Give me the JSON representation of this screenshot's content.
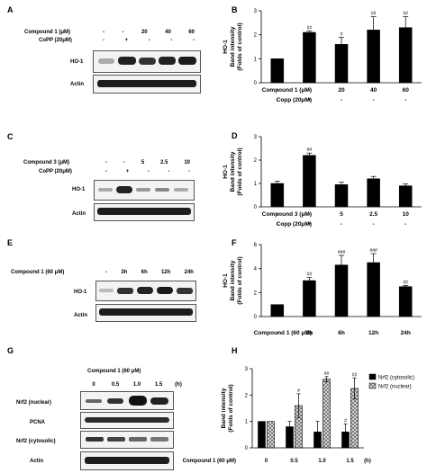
{
  "panels": {
    "A": {
      "label": "A",
      "treat_rows": [
        {
          "label": "Compound 1  (μM)",
          "values": [
            "-",
            "-",
            "20",
            "40",
            "60"
          ]
        },
        {
          "label": "CoPP  (20μM)",
          "values": [
            "-",
            "+",
            "-",
            "-",
            "-"
          ]
        }
      ],
      "bands": [
        "HO-1",
        "Actin"
      ]
    },
    "C": {
      "label": "C",
      "treat_rows": [
        {
          "label": "Compound 3  (μM)",
          "values": [
            "-",
            "-",
            "5",
            "2.5",
            "10"
          ]
        },
        {
          "label": "CoPP  (20μM)",
          "values": [
            "-",
            "+",
            "-",
            "-",
            "-"
          ]
        }
      ],
      "bands": [
        "HO-1",
        "Actin"
      ]
    },
    "E": {
      "label": "E",
      "treat_rows": [
        {
          "label": "Compound 1  (60 μM)",
          "values": [
            "-",
            "3h",
            "6h",
            "12h",
            "24h"
          ]
        }
      ],
      "bands": [
        "HO-1",
        "Actin"
      ]
    },
    "G": {
      "label": "G",
      "header": "Compound 1  (60 μM)",
      "values": [
        "0",
        "0.5",
        "1.0",
        "1.5"
      ],
      "unit": "(h)",
      "bands": [
        "Nrf2 (nuclear)",
        "PCNA",
        "Nrf2 (cytosolic)",
        "Actin"
      ]
    }
  },
  "chart_data": [
    {
      "id": "B",
      "type": "bar",
      "panel_label": "B",
      "ylabel_lines": [
        "HO-1",
        "Band intensity",
        "(Folds of control)"
      ],
      "ylim": [
        0,
        3
      ],
      "yticks": [
        "0",
        "1",
        "2",
        "3"
      ],
      "values": [
        1.0,
        2.1,
        1.6,
        2.2,
        2.3
      ],
      "errors": [
        0.0,
        0.05,
        0.3,
        0.55,
        0.45
      ],
      "sig": [
        "",
        "##",
        "#",
        "##",
        "##"
      ],
      "colors": [
        "#000000",
        "#000000",
        "#000000",
        "#000000",
        "#000000"
      ],
      "xrows": [
        {
          "label": "Compound 1  (μM)",
          "values": [
            "-",
            "-",
            "20",
            "40",
            "60"
          ]
        },
        {
          "label": "Copp  (20μM)",
          "values": [
            "-",
            "+",
            "-",
            "-",
            "-"
          ]
        }
      ]
    },
    {
      "id": "D",
      "type": "bar",
      "panel_label": "D",
      "ylabel_lines": [
        "HO-1",
        "Band intensity",
        "(Folds of control)"
      ],
      "ylim": [
        0,
        3
      ],
      "yticks": [
        "0",
        "1",
        "2",
        "3"
      ],
      "values": [
        1.0,
        2.2,
        0.95,
        1.2,
        0.9
      ],
      "errors": [
        0.1,
        0.1,
        0.1,
        0.1,
        0.08
      ],
      "sig": [
        "",
        "##",
        "",
        "",
        ""
      ],
      "colors": [
        "#000000",
        "#000000",
        "#000000",
        "#000000",
        "#000000"
      ],
      "xrows": [
        {
          "label": "Compound 3  (μM)",
          "values": [
            "-",
            "-",
            "5",
            "2.5",
            "10"
          ]
        },
        {
          "label": "Copp  (20μM)",
          "values": [
            "-",
            "+",
            "-",
            "-",
            "-"
          ]
        }
      ]
    },
    {
      "id": "F",
      "type": "bar",
      "panel_label": "F",
      "ylabel_lines": [
        "HO-1",
        "Band intensity",
        "(Folds of control)"
      ],
      "ylim": [
        0,
        6
      ],
      "yticks": [
        "0",
        "2",
        "4",
        "6"
      ],
      "values": [
        1.0,
        3.0,
        4.3,
        4.5,
        2.5
      ],
      "errors": [
        0.0,
        0.25,
        0.8,
        0.75,
        0.1
      ],
      "sig": [
        "",
        "##",
        "###",
        "###",
        "##"
      ],
      "colors": [
        "#000000",
        "#000000",
        "#000000",
        "#000000",
        "#000000"
      ],
      "xrows": [
        {
          "label": "Compound 1  (60 μM)",
          "values": [
            "-",
            "3h",
            "6h",
            "12h",
            "24h"
          ]
        }
      ]
    },
    {
      "id": "H",
      "type": "bar",
      "panel_label": "H",
      "ylabel_lines": [
        "Band intensity",
        "(Folds of control)"
      ],
      "ylim": [
        0,
        3
      ],
      "yticks": [
        "0",
        "1",
        "2",
        "3"
      ],
      "categories": [
        "0",
        "0.5",
        "1.0",
        "1.5"
      ],
      "series": [
        {
          "name": "Nrf2 (cytosolic)",
          "values": [
            1.0,
            0.8,
            0.6,
            0.6
          ],
          "errors": [
            0.0,
            0.2,
            0.4,
            0.3
          ],
          "sig": [
            "",
            "",
            "",
            "#"
          ],
          "color": "#000000"
        },
        {
          "name": "Nrf2 (nuclear)",
          "values": [
            1.0,
            1.6,
            2.6,
            2.25
          ],
          "errors": [
            0.0,
            0.45,
            0.1,
            0.4
          ],
          "sig": [
            "",
            "#",
            "##",
            "##"
          ],
          "color": "#cccccc"
        }
      ],
      "legend": "top-right",
      "xrows": [
        {
          "label": "Compound 1  (60 μM)",
          "values": [
            "0",
            "0.5",
            "1.0",
            "1.5"
          ],
          "unit": "(h)"
        }
      ]
    }
  ]
}
